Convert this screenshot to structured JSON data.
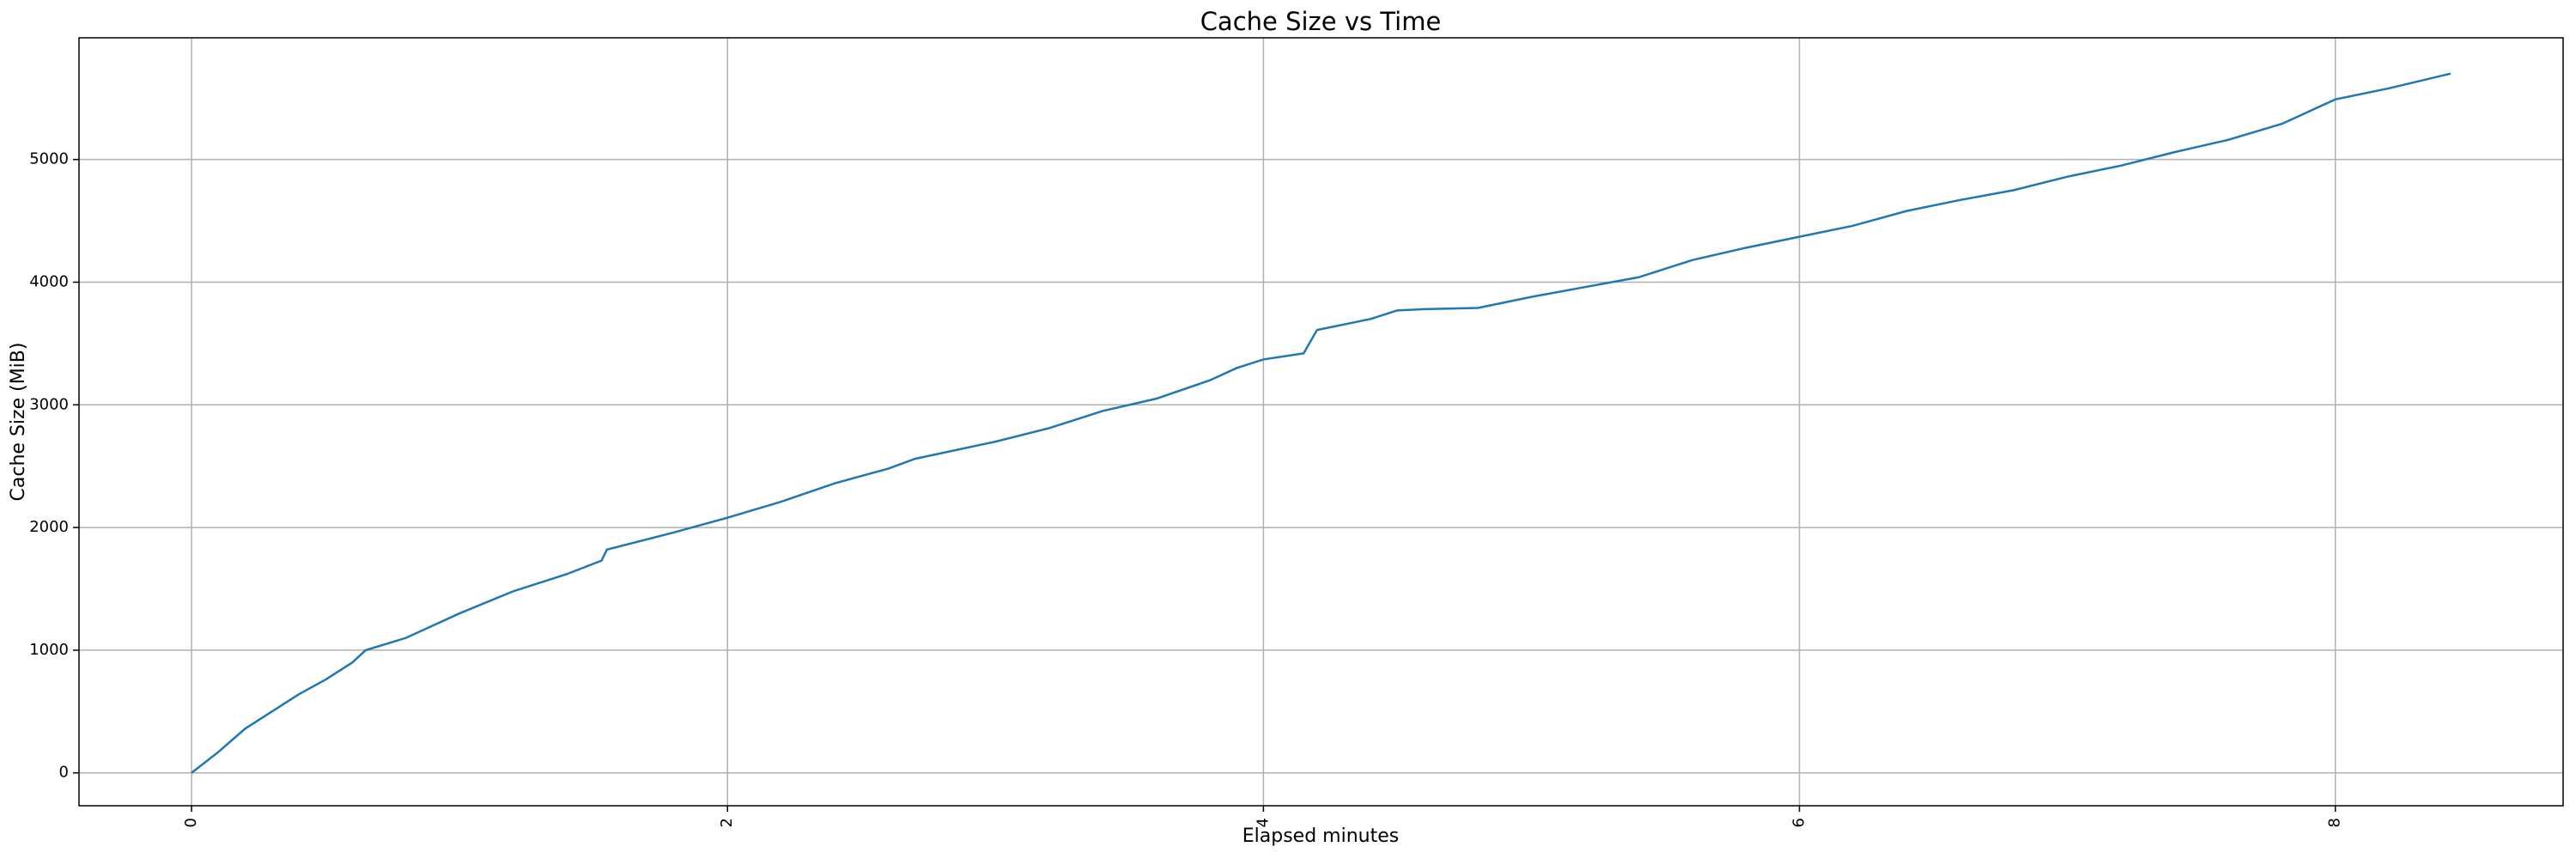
{
  "chart_data": {
    "type": "line",
    "title": "Cache Size vs Time",
    "x_label": "Elapsed minutes",
    "y_label": "Cache Size (MiB)",
    "x": [
      0,
      0.1,
      0.2,
      0.3,
      0.4,
      0.5,
      0.6,
      0.65,
      0.8,
      1.0,
      1.2,
      1.4,
      1.53,
      1.55,
      1.8,
      2.0,
      2.2,
      2.4,
      2.6,
      2.7,
      3.0,
      3.2,
      3.4,
      3.6,
      3.8,
      3.9,
      4.0,
      4.15,
      4.2,
      4.4,
      4.5,
      4.6,
      4.8,
      5.0,
      5.2,
      5.4,
      5.6,
      5.8,
      6.0,
      6.2,
      6.4,
      6.6,
      6.8,
      7.0,
      7.2,
      7.4,
      7.6,
      7.8,
      8.0,
      8.2,
      8.43
    ],
    "series": [
      {
        "name": "Cache Size",
        "color": "#1f77b4",
        "values": [
          0,
          170,
          360,
          500,
          640,
          760,
          900,
          1000,
          1100,
          1300,
          1480,
          1620,
          1730,
          1820,
          1960,
          2080,
          2210,
          2360,
          2480,
          2560,
          2700,
          2810,
          2950,
          3050,
          3200,
          3300,
          3370,
          3420,
          3610,
          3700,
          3770,
          3780,
          3790,
          3880,
          3960,
          4040,
          4180,
          4280,
          4370,
          4460,
          4580,
          4670,
          4750,
          4860,
          4950,
          5060,
          5160,
          5290,
          5490,
          5580,
          5700
        ]
      }
    ],
    "xlim": [
      -0.42,
      8.85
    ],
    "ylim": [
      -268,
      5992
    ],
    "xticks": [
      0,
      2,
      4,
      6,
      8
    ],
    "yticks": [
      0,
      1000,
      2000,
      3000,
      4000,
      5000
    ],
    "grid": true
  }
}
